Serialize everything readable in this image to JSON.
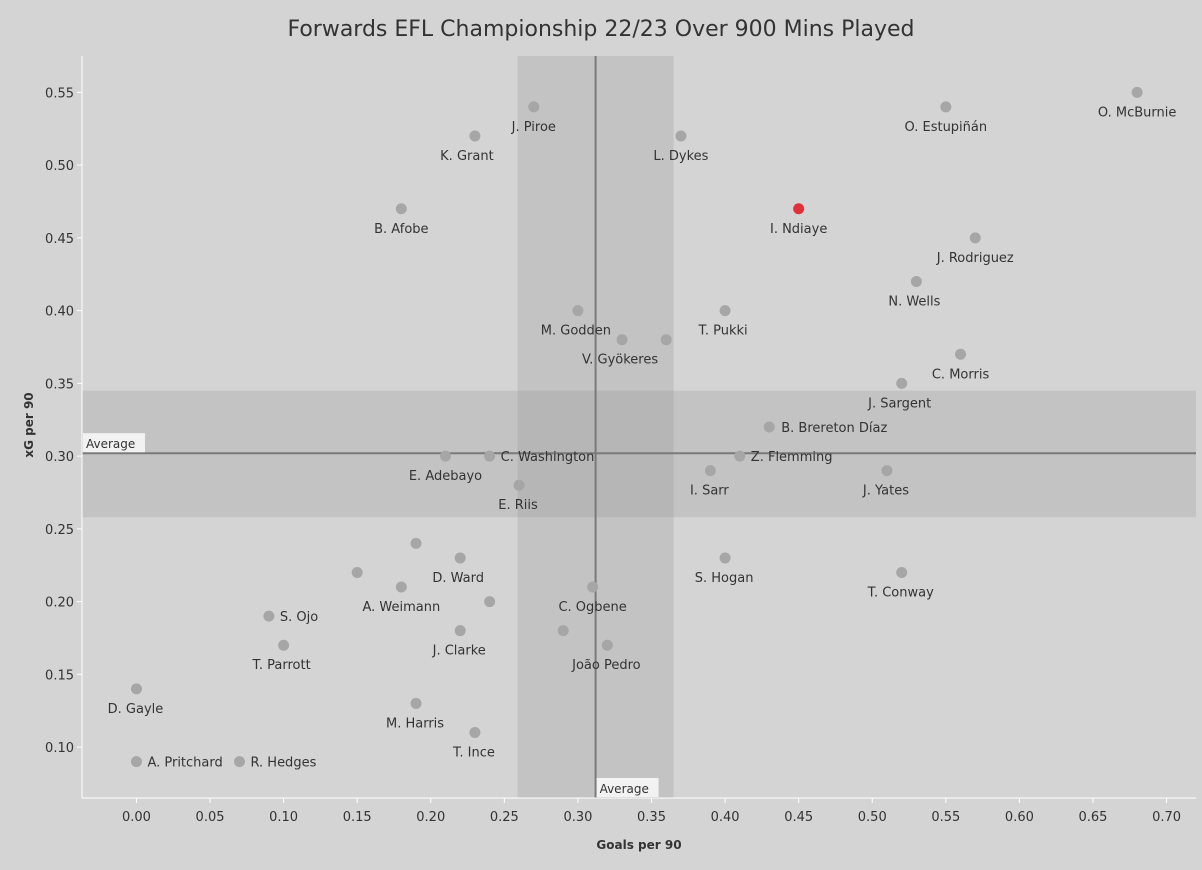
{
  "chart_data": {
    "type": "scatter",
    "title": "Forwards EFL Championship 22/23 Over 900 Mins Played",
    "xlabel": "Goals per 90",
    "ylabel": "xG per 90",
    "xlim": [
      -0.037,
      0.72
    ],
    "ylim": [
      0.065,
      0.575
    ],
    "x_ticks": [
      "0.00",
      "0.05",
      "0.10",
      "0.15",
      "0.20",
      "0.25",
      "0.30",
      "0.35",
      "0.40",
      "0.45",
      "0.50",
      "0.55",
      "0.60",
      "0.65",
      "0.70"
    ],
    "y_ticks": [
      "0.10",
      "0.15",
      "0.20",
      "0.25",
      "0.30",
      "0.35",
      "0.40",
      "0.45",
      "0.50",
      "0.55"
    ],
    "x_average": 0.312,
    "x_band": [
      0.259,
      0.365
    ],
    "y_average": 0.302,
    "y_band": [
      0.258,
      0.345
    ],
    "average_label": "Average",
    "highlight_color": "#e0303a",
    "point_color": "#a6a6a6",
    "points": [
      {
        "x": 0.68,
        "y": 0.55,
        "label": "O. McBurnie"
      },
      {
        "x": 0.55,
        "y": 0.54,
        "label": "O. Estupiñán"
      },
      {
        "x": 0.27,
        "y": 0.54,
        "label": "J. Piroe"
      },
      {
        "x": 0.23,
        "y": 0.52,
        "label": "K. Grant"
      },
      {
        "x": 0.37,
        "y": 0.52,
        "label": "L. Dykes"
      },
      {
        "x": 0.18,
        "y": 0.47,
        "label": "B. Afobe"
      },
      {
        "x": 0.45,
        "y": 0.47,
        "label": "I. Ndiaye",
        "highlight": true
      },
      {
        "x": 0.57,
        "y": 0.45,
        "label": "J. Rodriguez"
      },
      {
        "x": 0.53,
        "y": 0.42,
        "label": "N. Wells"
      },
      {
        "x": 0.3,
        "y": 0.4,
        "label": "M. Godden"
      },
      {
        "x": 0.4,
        "y": 0.4,
        "label": "T. Pukki"
      },
      {
        "x": 0.33,
        "y": 0.38,
        "label": "V. Gyökeres"
      },
      {
        "x": 0.36,
        "y": 0.38,
        "label": ""
      },
      {
        "x": 0.56,
        "y": 0.37,
        "label": "C. Morris"
      },
      {
        "x": 0.52,
        "y": 0.35,
        "label": "J. Sargent"
      },
      {
        "x": 0.43,
        "y": 0.32,
        "label": "B. Brereton Díaz"
      },
      {
        "x": 0.21,
        "y": 0.3,
        "label": "E. Adebayo"
      },
      {
        "x": 0.24,
        "y": 0.3,
        "label": "C. Washington"
      },
      {
        "x": 0.41,
        "y": 0.3,
        "label": "Z. Flemming"
      },
      {
        "x": 0.39,
        "y": 0.29,
        "label": "I. Sarr"
      },
      {
        "x": 0.51,
        "y": 0.29,
        "label": "J. Yates"
      },
      {
        "x": 0.26,
        "y": 0.28,
        "label": "E. Riis"
      },
      {
        "x": 0.19,
        "y": 0.24,
        "label": ""
      },
      {
        "x": 0.22,
        "y": 0.23,
        "label": "D. Ward"
      },
      {
        "x": 0.4,
        "y": 0.23,
        "label": "S. Hogan"
      },
      {
        "x": 0.15,
        "y": 0.22,
        "label": ""
      },
      {
        "x": 0.52,
        "y": 0.22,
        "label": "T. Conway"
      },
      {
        "x": 0.18,
        "y": 0.21,
        "label": "A. Weimann"
      },
      {
        "x": 0.31,
        "y": 0.21,
        "label": "C. Ogbene"
      },
      {
        "x": 0.24,
        "y": 0.2,
        "label": ""
      },
      {
        "x": 0.09,
        "y": 0.19,
        "label": "S. Ojo"
      },
      {
        "x": 0.22,
        "y": 0.18,
        "label": "J. Clarke"
      },
      {
        "x": 0.29,
        "y": 0.18,
        "label": ""
      },
      {
        "x": 0.1,
        "y": 0.17,
        "label": "T. Parrott"
      },
      {
        "x": 0.32,
        "y": 0.17,
        "label": "João Pedro"
      },
      {
        "x": 0.0,
        "y": 0.14,
        "label": "D. Gayle"
      },
      {
        "x": 0.19,
        "y": 0.13,
        "label": "M. Harris"
      },
      {
        "x": 0.23,
        "y": 0.11,
        "label": "T. Ince"
      },
      {
        "x": 0.0,
        "y": 0.09,
        "label": "A. Pritchard"
      },
      {
        "x": 0.07,
        "y": 0.09,
        "label": "R. Hedges"
      }
    ]
  }
}
